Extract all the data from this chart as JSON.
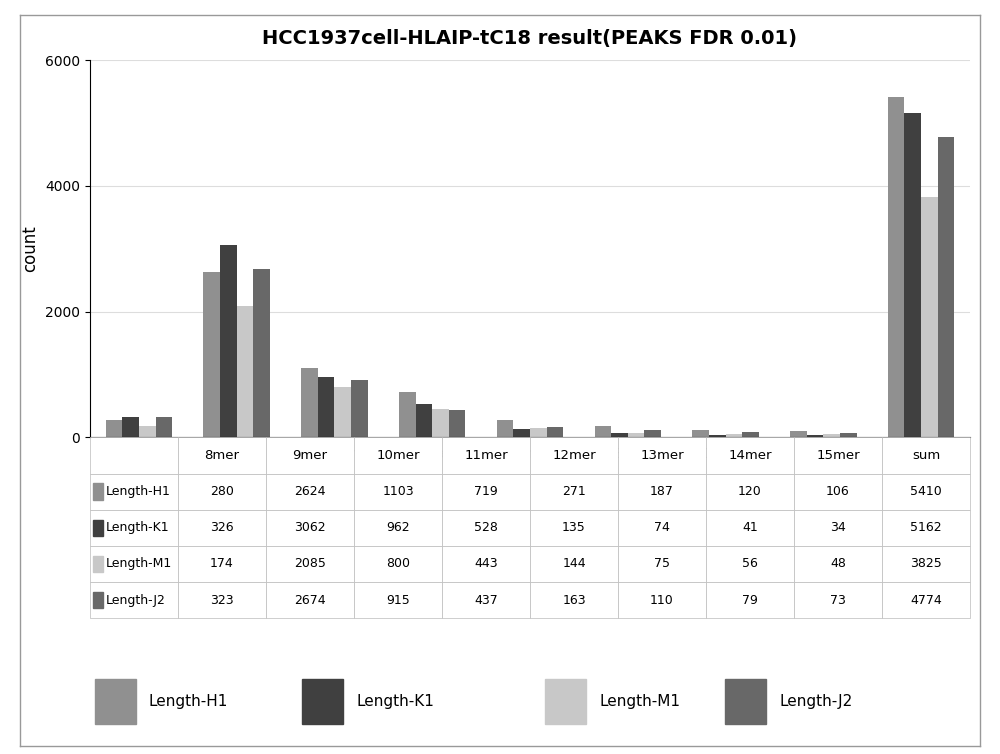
{
  "title": "HCC1937cell-HLAIP-tC18 result(PEAKS FDR 0.01)",
  "categories": [
    "8mer",
    "9mer",
    "10mer",
    "11mer",
    "12mer",
    "13mer",
    "14mer",
    "15mer",
    "sum"
  ],
  "series": [
    {
      "label": "Length-H1",
      "color": "#909090",
      "values": [
        280,
        2624,
        1103,
        719,
        271,
        187,
        120,
        106,
        5410
      ]
    },
    {
      "label": "Length-K1",
      "color": "#404040",
      "values": [
        326,
        3062,
        962,
        528,
        135,
        74,
        41,
        34,
        5162
      ]
    },
    {
      "label": "Length-M1",
      "color": "#c8c8c8",
      "values": [
        174,
        2085,
        800,
        443,
        144,
        75,
        56,
        48,
        3825
      ]
    },
    {
      "label": "Length-J2",
      "color": "#686868",
      "values": [
        323,
        2674,
        915,
        437,
        163,
        110,
        79,
        73,
        4774
      ]
    }
  ],
  "ylabel": "count",
  "ylim": [
    0,
    6000
  ],
  "yticks": [
    0,
    2000,
    4000,
    6000
  ],
  "table_rows": [
    [
      "280",
      "2624",
      "1103",
      "719",
      "271",
      "187",
      "120",
      "106",
      "5410"
    ],
    [
      "326",
      "3062",
      "962",
      "528",
      "135",
      "74",
      "41",
      "34",
      "5162"
    ],
    [
      "174",
      "2085",
      "800",
      "443",
      "144",
      "75",
      "56",
      "48",
      "3825"
    ],
    [
      "323",
      "2674",
      "915",
      "437",
      "163",
      "110",
      "79",
      "73",
      "4774"
    ]
  ],
  "row_labels": [
    "Length-H1",
    "Length-K1",
    "Length-M1",
    "Length-J2"
  ],
  "legend_colors": [
    "#909090",
    "#404040",
    "#c8c8c8",
    "#686868"
  ],
  "legend_labels": [
    "Length-H1",
    "Length-K1",
    "Length-M1",
    "Length-J2"
  ]
}
